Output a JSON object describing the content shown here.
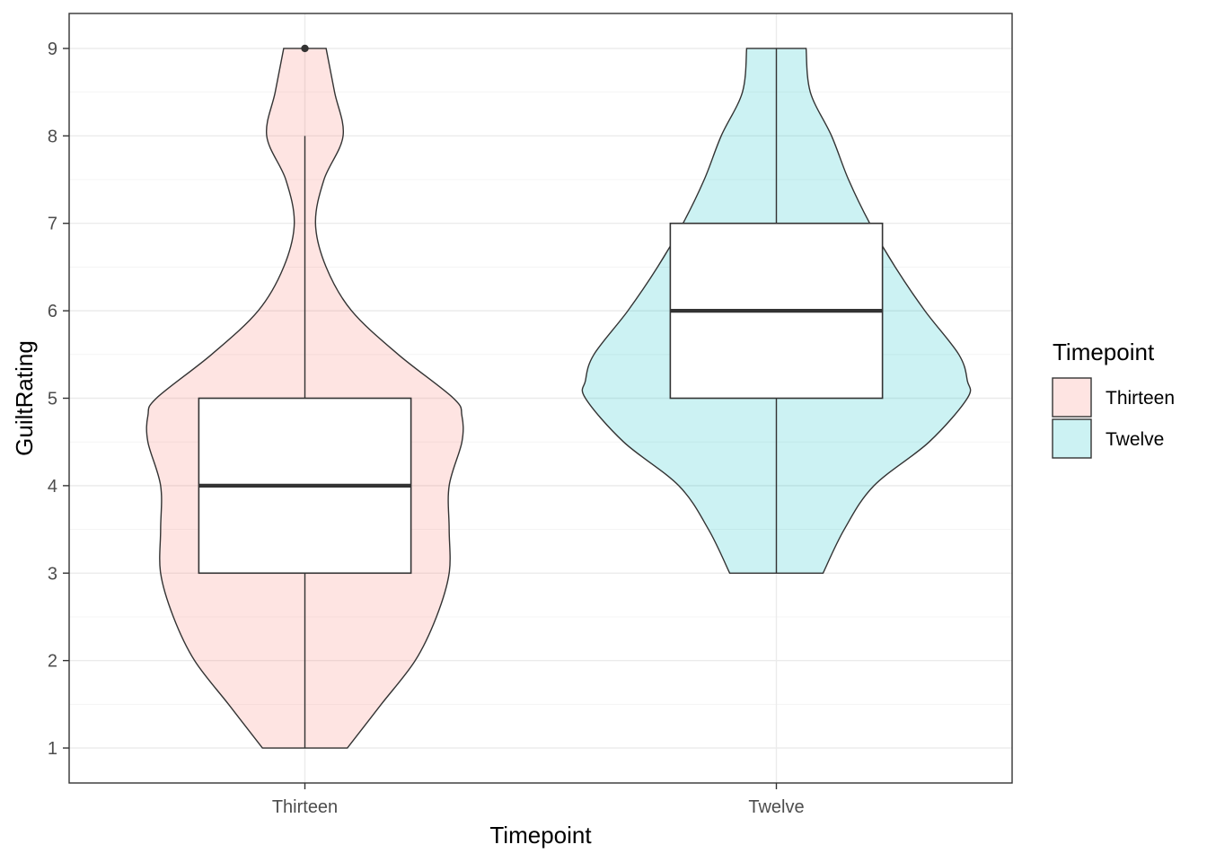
{
  "chart_data": {
    "type": "violin",
    "xlabel": "Timepoint",
    "ylabel": "GuiltRating",
    "categories": [
      "Thirteen",
      "Twelve"
    ],
    "ylim": [
      0.6,
      9.4
    ],
    "yticks": [
      1,
      2,
      3,
      4,
      5,
      6,
      7,
      8,
      9
    ],
    "grid": true,
    "legend": {
      "title": "Timepoint",
      "position": "right",
      "entries": [
        "Thirteen",
        "Twelve"
      ]
    },
    "colors": {
      "Thirteen": "#F8766D",
      "Twelve": "#00BFC4",
      "box_fill": "#ffffff",
      "outline": "#333333"
    },
    "series": [
      {
        "category": "Thirteen",
        "box": {
          "min": 1,
          "q1": 3,
          "median": 4,
          "q3": 5,
          "max": 8
        },
        "outliers": [
          9
        ],
        "density": [
          [
            1.0,
            0.2
          ],
          [
            1.5,
            0.36
          ],
          [
            2.0,
            0.52
          ],
          [
            2.5,
            0.62
          ],
          [
            3.0,
            0.68
          ],
          [
            3.5,
            0.68
          ],
          [
            4.0,
            0.68
          ],
          [
            4.5,
            0.74
          ],
          [
            4.8,
            0.74
          ],
          [
            5.0,
            0.7
          ],
          [
            5.5,
            0.44
          ],
          [
            6.0,
            0.22
          ],
          [
            6.5,
            0.1
          ],
          [
            7.0,
            0.05
          ],
          [
            7.5,
            0.09
          ],
          [
            8.0,
            0.18
          ],
          [
            8.5,
            0.14
          ],
          [
            9.0,
            0.1
          ]
        ]
      },
      {
        "category": "Twelve",
        "box": {
          "min": 3,
          "q1": 5,
          "median": 6,
          "q3": 7,
          "max": 9
        },
        "outliers": [],
        "density": [
          [
            3.0,
            0.22
          ],
          [
            3.5,
            0.32
          ],
          [
            4.0,
            0.46
          ],
          [
            4.5,
            0.72
          ],
          [
            5.0,
            0.9
          ],
          [
            5.2,
            0.9
          ],
          [
            5.5,
            0.86
          ],
          [
            6.0,
            0.7
          ],
          [
            6.5,
            0.56
          ],
          [
            7.0,
            0.44
          ],
          [
            7.5,
            0.34
          ],
          [
            8.0,
            0.26
          ],
          [
            8.5,
            0.16
          ],
          [
            9.0,
            0.14
          ]
        ]
      }
    ]
  }
}
